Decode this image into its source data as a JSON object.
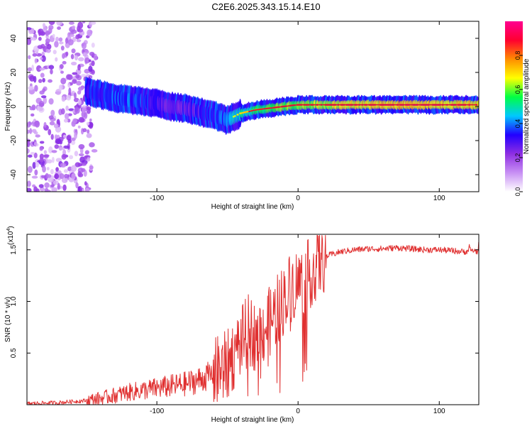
{
  "figure": {
    "title": "C2E6.2025.343.15.14.E10"
  },
  "colors": {
    "snr_line": "#e03030",
    "ridge_core": "#d4123a",
    "colormap": [
      "#ffffff",
      "#c890f4",
      "#8e2ee2",
      "#2200ff",
      "#00c8ff",
      "#00ff44",
      "#ffff00",
      "#ff8c00",
      "#ff0030",
      "#ff0090"
    ]
  },
  "chart_data": [
    {
      "type": "heatmap",
      "title": "",
      "xlabel": "Height of straight line (km)",
      "ylabel": "Frequency (Hz)",
      "xlim": [
        -192,
        128
      ],
      "ylim": [
        -50,
        50
      ],
      "xticks": [
        -100,
        0,
        100
      ],
      "yticks": [
        -40,
        -20,
        0,
        20,
        40
      ],
      "colorbar": {
        "label": "Normalized spectral amplitude",
        "range": [
          0,
          1
        ],
        "ticks": [
          0.0,
          0.2,
          0.4,
          0.6,
          0.8
        ]
      },
      "noise_region": {
        "x": [
          -192,
          -145
        ],
        "y": [
          -50,
          50
        ]
      },
      "ridge": {
        "x": [
          -150,
          -140,
          -130,
          -120,
          -110,
          -100,
          -90,
          -80,
          -70,
          -60,
          -50,
          -40,
          -30,
          -20,
          -10,
          0,
          20,
          40,
          60,
          80,
          100,
          128
        ],
        "freq": [
          9,
          7,
          5,
          4,
          3,
          2,
          0,
          -1,
          -3,
          -5,
          -8,
          -4,
          -2,
          -1,
          0,
          1,
          1,
          1,
          1,
          1,
          1,
          1
        ],
        "amplitude": [
          0.4,
          0.45,
          0.5,
          0.5,
          0.45,
          0.4,
          0.35,
          0.35,
          0.4,
          0.45,
          0.55,
          0.65,
          0.7,
          0.75,
          0.8,
          0.8,
          0.85,
          0.9,
          0.92,
          0.95,
          0.92,
          0.9
        ]
      }
    },
    {
      "type": "line",
      "title": "",
      "xlabel": "Height of straight line (km)",
      "ylabel": "SNR (10 * v/v)",
      "scale_note": "(x10",
      "scale_exp": "4",
      "xlim": [
        -192,
        128
      ],
      "ylim": [
        0,
        1.65
      ],
      "xticks": [
        -100,
        0,
        100
      ],
      "yticks": [
        0.5,
        1.0,
        1.5
      ],
      "ytick_labels": [
        "0.5",
        "1.0",
        "1.5"
      ],
      "series": [
        {
          "name": "SNR",
          "x": [
            -192,
            -170,
            -150,
            -140,
            -130,
            -120,
            -110,
            -100,
            -90,
            -80,
            -70,
            -60,
            -50,
            -45,
            -40,
            -35,
            -30,
            -25,
            -20,
            -15,
            -10,
            -5,
            0,
            5,
            10,
            15,
            20,
            30,
            40,
            50,
            60,
            70,
            80,
            90,
            100,
            110,
            118,
            122,
            128
          ],
          "y": [
            0.01,
            0.02,
            0.04,
            0.06,
            0.09,
            0.12,
            0.14,
            0.16,
            0.18,
            0.2,
            0.24,
            0.3,
            0.38,
            0.5,
            0.62,
            0.72,
            0.66,
            0.72,
            0.8,
            0.92,
            1.02,
            1.15,
            1.18,
            1.22,
            1.3,
            1.38,
            1.44,
            1.48,
            1.5,
            1.51,
            1.51,
            1.52,
            1.51,
            1.5,
            1.5,
            1.49,
            1.48,
            1.5,
            1.48
          ]
        }
      ]
    }
  ]
}
